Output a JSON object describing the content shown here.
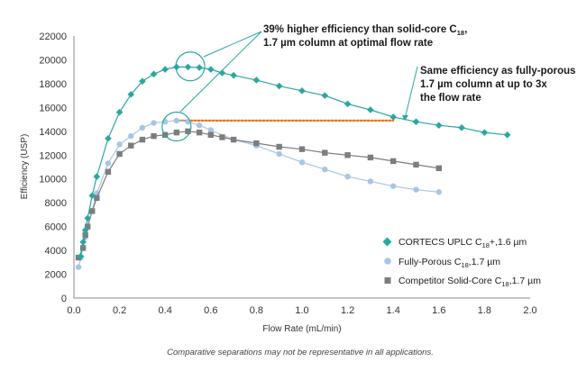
{
  "chart_data": {
    "type": "scatter",
    "xlabel": "Flow Rate (mL/min)",
    "ylabel": "Efficiency (USP)",
    "xlim": [
      0,
      2.0
    ],
    "ylim": [
      0,
      22000
    ],
    "x_ticks": [
      "0.0",
      "0.2",
      "0.4",
      "0.6",
      "0.8",
      "1.0",
      "1.2",
      "1.4",
      "1.6",
      "1.8",
      "2.0"
    ],
    "y_ticks": [
      "0",
      "2000",
      "4000",
      "6000",
      "8000",
      "10000",
      "12000",
      "14000",
      "16000",
      "18000",
      "20000",
      "22000"
    ],
    "grid": false,
    "legend_position": "bottom-right",
    "series": [
      {
        "name": "CORTECS UPLC C18+,1.6 µm",
        "legend_main": "CORTECS UPLC C",
        "legend_sub": "18",
        "legend_rest": "+,1.6 µm",
        "color": "#2aa79f",
        "marker": "diamond",
        "x": [
          0.03,
          0.04,
          0.05,
          0.06,
          0.08,
          0.1,
          0.15,
          0.2,
          0.25,
          0.3,
          0.35,
          0.4,
          0.45,
          0.5,
          0.55,
          0.6,
          0.65,
          0.7,
          0.8,
          0.9,
          1.0,
          1.1,
          1.2,
          1.3,
          1.4,
          1.5,
          1.6,
          1.7,
          1.8,
          1.9
        ],
        "y": [
          3500,
          4700,
          5700,
          6700,
          8600,
          10200,
          13400,
          15600,
          17100,
          18200,
          18800,
          19200,
          19400,
          19400,
          19350,
          19200,
          18900,
          18700,
          18300,
          17800,
          17400,
          17000,
          16300,
          15800,
          15200,
          14800,
          14500,
          14300,
          13900,
          13700
        ]
      },
      {
        "name": "Fully-Porous C18,1.7 µm",
        "legend_main": "Fully-Porous C",
        "legend_sub": "18",
        "legend_rest": ",1.7 µm",
        "color": "#a8c6e4",
        "marker": "circle",
        "x": [
          0.02,
          0.03,
          0.04,
          0.05,
          0.06,
          0.08,
          0.1,
          0.15,
          0.2,
          0.25,
          0.3,
          0.35,
          0.4,
          0.45,
          0.5,
          0.55,
          0.6,
          0.7,
          0.8,
          0.9,
          1.0,
          1.1,
          1.2,
          1.3,
          1.4,
          1.5,
          1.6
        ],
        "y": [
          2600,
          3400,
          4200,
          5100,
          6000,
          7300,
          8800,
          11300,
          12900,
          13600,
          14300,
          14700,
          14800,
          14900,
          14800,
          14500,
          14100,
          13300,
          12800,
          12100,
          11400,
          10800,
          10200,
          9800,
          9400,
          9100,
          8900
        ]
      },
      {
        "name": "Competitor Solid-Core C18,1.7 µm",
        "legend_main": "Competitor Solid-Core C",
        "legend_sub": "18",
        "legend_rest": ",1.7 µm",
        "color": "#7d7d7d",
        "marker": "square",
        "x": [
          0.02,
          0.04,
          0.05,
          0.06,
          0.08,
          0.1,
          0.15,
          0.2,
          0.25,
          0.3,
          0.35,
          0.4,
          0.45,
          0.5,
          0.55,
          0.6,
          0.65,
          0.7,
          0.8,
          0.9,
          1.0,
          1.1,
          1.2,
          1.3,
          1.4,
          1.5,
          1.6
        ],
        "y": [
          3400,
          4200,
          5300,
          6000,
          7300,
          8400,
          10600,
          12100,
          12800,
          13300,
          13600,
          13700,
          13900,
          14000,
          13900,
          13700,
          13500,
          13300,
          13000,
          12700,
          12500,
          12200,
          12000,
          11800,
          11500,
          11200,
          10900
        ]
      }
    ],
    "reference_line": {
      "x_from": 0.45,
      "x_to": 1.4,
      "y": 14900,
      "color": "#e07b21",
      "style": "dotted"
    },
    "highlight_circles": [
      {
        "x": 0.51,
        "y": 19450,
        "color": "#2aa79f"
      },
      {
        "x": 0.45,
        "y": 14400,
        "color": "#2aa79f"
      }
    ],
    "annotations": [
      {
        "lines": [
          {
            "main": "39% higher efficiency than solid-core C",
            "sub": "18",
            "rest": ","
          },
          {
            "main": "1.7 µm column at optimal flow rate",
            "sub": "",
            "rest": ""
          }
        ]
      },
      {
        "lines": [
          {
            "main": "Same efficiency as fully-porous",
            "sub": "",
            "rest": ""
          },
          {
            "main": "1.7 µm column at up to 3x",
            "sub": "",
            "rest": ""
          },
          {
            "main": "the flow rate",
            "sub": "",
            "rest": ""
          }
        ]
      }
    ],
    "footnote": "Comparative separations may not be representative in all applications."
  }
}
